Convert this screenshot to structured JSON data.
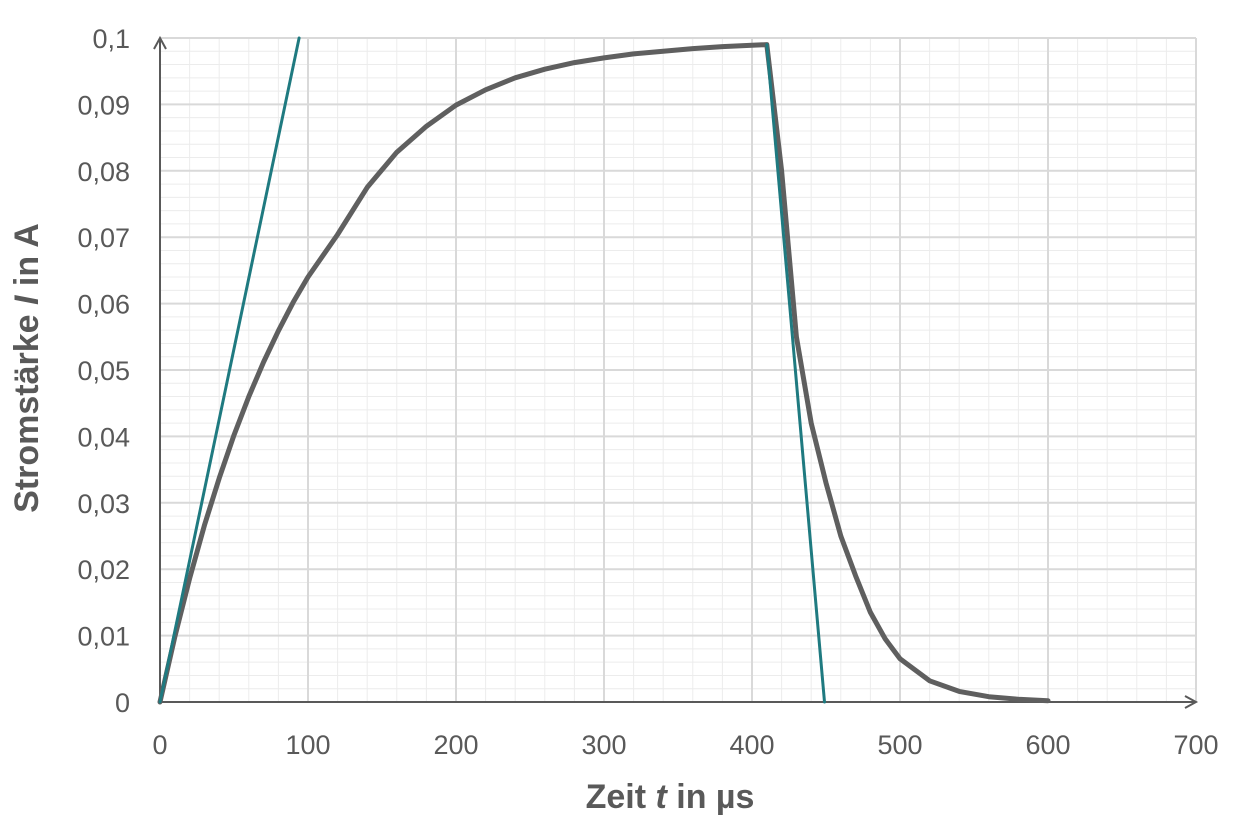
{
  "chart_data": {
    "type": "line",
    "xlabel": {
      "pre": "Zeit ",
      "var": "t",
      "post": " in µs"
    },
    "ylabel": {
      "pre": "Stromstärke ",
      "var": "I",
      "post": " in A"
    },
    "xlim": [
      0,
      700
    ],
    "ylim": [
      0,
      0.1
    ],
    "x_ticks": [
      0,
      100,
      200,
      300,
      400,
      500,
      600,
      700
    ],
    "x_tick_labels": [
      "0",
      "100",
      "200",
      "300",
      "400",
      "500",
      "600",
      "700"
    ],
    "y_ticks": [
      0,
      0.01,
      0.02,
      0.03,
      0.04,
      0.05,
      0.06,
      0.07,
      0.08,
      0.09,
      0.1
    ],
    "y_tick_labels": [
      "0",
      "0,01",
      "0,02",
      "0,03",
      "0,04",
      "0,05",
      "0,06",
      "0,07",
      "0,08",
      "0,09",
      "0,1"
    ],
    "grid": {
      "major": true,
      "minor_x_step": 20,
      "minor_y_step": 0.002
    },
    "colors": {
      "curve": "#5f5f5f",
      "tangent": "#1f7a80",
      "axis": "#595959",
      "grid_major": "#d9d9d9",
      "grid_minor": "#ececec"
    },
    "series": [
      {
        "role": "curve",
        "x": [
          0,
          10,
          20,
          30,
          40,
          50,
          60,
          70,
          80,
          90,
          100,
          120,
          140,
          160,
          180,
          200,
          220,
          240,
          260,
          280,
          300,
          320,
          340,
          360,
          380,
          400,
          410,
          420,
          430,
          440,
          450,
          460,
          470,
          480,
          490,
          500,
          520,
          540,
          560,
          580,
          600
        ],
        "y": [
          0,
          0.0098,
          0.0186,
          0.0266,
          0.0337,
          0.0402,
          0.046,
          0.0512,
          0.0559,
          0.0602,
          0.064,
          0.0704,
          0.0775,
          0.0828,
          0.0867,
          0.0899,
          0.0922,
          0.094,
          0.0953,
          0.0963,
          0.097,
          0.0976,
          0.098,
          0.0984,
          0.0987,
          0.0989,
          0.099,
          0.08,
          0.055,
          0.042,
          0.033,
          0.025,
          0.019,
          0.0135,
          0.0095,
          0.0065,
          0.0032,
          0.0016,
          0.0008,
          0.0004,
          0.0002
        ]
      },
      {
        "role": "tangent",
        "x": [
          0,
          94
        ],
        "y": [
          0,
          0.1
        ]
      },
      {
        "role": "tangent",
        "x": [
          410,
          449
        ],
        "y": [
          0.099,
          0
        ]
      }
    ]
  }
}
